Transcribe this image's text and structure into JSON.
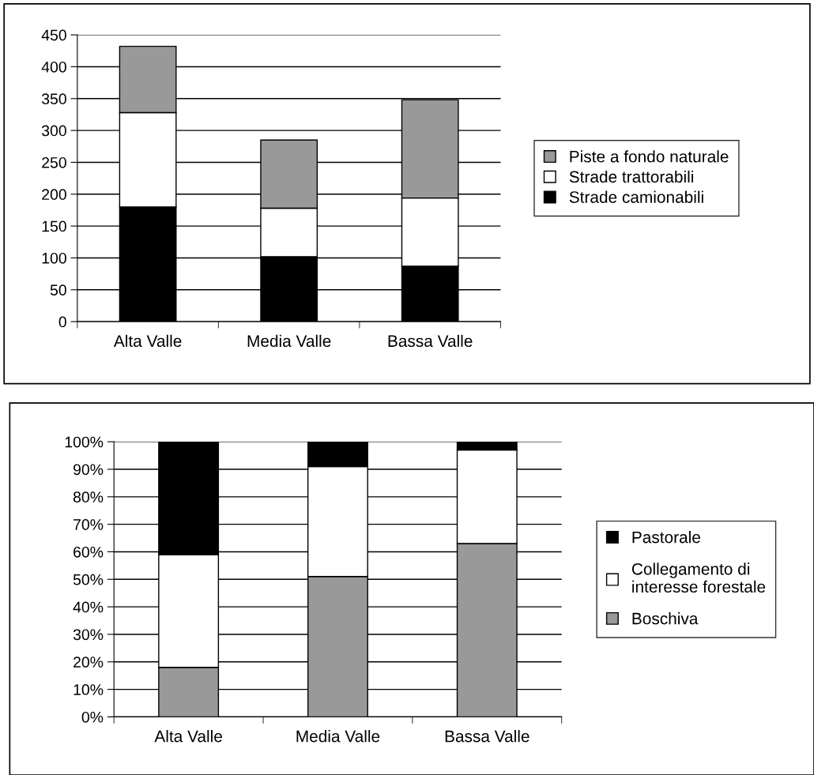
{
  "chart_data": [
    {
      "type": "bar",
      "stacked": true,
      "categories": [
        "Alta Valle",
        "Media Valle",
        "Bassa Valle"
      ],
      "series": [
        {
          "name": "Strade camionabili",
          "color": "#000000",
          "values": [
            180,
            102,
            87
          ]
        },
        {
          "name": "Strade trattorabili",
          "color": "#ffffff",
          "values": [
            148,
            76,
            107
          ]
        },
        {
          "name": "Piste a fondo naturale",
          "color": "#999999",
          "values": [
            104,
            107,
            154
          ]
        }
      ],
      "ylim": [
        0,
        450
      ],
      "yticks": [
        0,
        50,
        100,
        150,
        200,
        250,
        300,
        350,
        400,
        450
      ],
      "grid": "y",
      "legend": "right"
    },
    {
      "type": "bar",
      "stacked": true,
      "categories": [
        "Alta Valle",
        "Media Valle",
        "Bassa Valle"
      ],
      "series": [
        {
          "name": "Boschiva",
          "color": "#999999",
          "values": [
            18,
            51,
            63
          ]
        },
        {
          "name": "Collegamento di\ninteresse forestale",
          "color": "#ffffff",
          "values": [
            41,
            40,
            34
          ]
        },
        {
          "name": "Pastorale",
          "color": "#000000",
          "values": [
            41,
            9,
            3
          ]
        }
      ],
      "ylim": [
        0,
        100
      ],
      "yticks": [
        {
          "value": 0,
          "label": "0%"
        },
        {
          "value": 10,
          "label": "10%"
        },
        {
          "value": 20,
          "label": "20%"
        },
        {
          "value": 30,
          "label": "30%"
        },
        {
          "value": 40,
          "label": "40%"
        },
        {
          "value": 50,
          "label": "50%"
        },
        {
          "value": 60,
          "label": "60%"
        },
        {
          "value": 70,
          "label": "70%"
        },
        {
          "value": 80,
          "label": "80%"
        },
        {
          "value": 90,
          "label": "90%"
        },
        {
          "value": 100,
          "label": "100%"
        }
      ],
      "grid": "y",
      "legend": "right"
    }
  ]
}
